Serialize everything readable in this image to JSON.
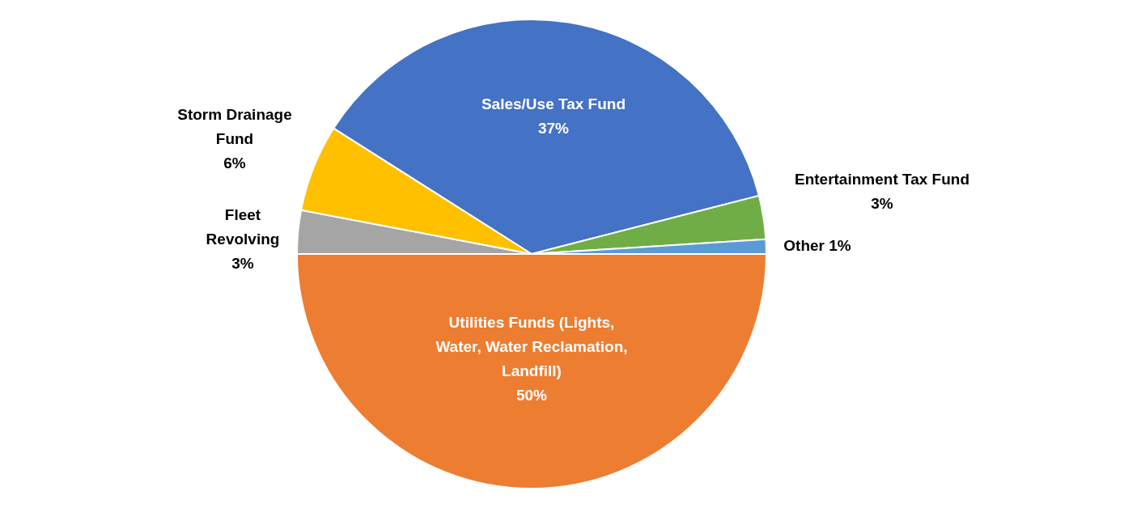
{
  "chart_data": {
    "type": "pie",
    "categories": [
      "Sales/Use Tax Fund",
      "Entertainment Tax Fund",
      "Other",
      "Utilities Funds (Lights, Water, Water Reclamation, Landfill)",
      "Fleet Revolving",
      "Storm Drainage Fund"
    ],
    "values": [
      37,
      3,
      1,
      50,
      3,
      6
    ],
    "value_labels": [
      "37%",
      "3%",
      "1%",
      "50%",
      "3%",
      "6%"
    ],
    "colors": [
      "#4472c4",
      "#70ad47",
      "#5b9bd5",
      "#ed7d31",
      "#a5a5a5",
      "#ffc000"
    ]
  }
}
